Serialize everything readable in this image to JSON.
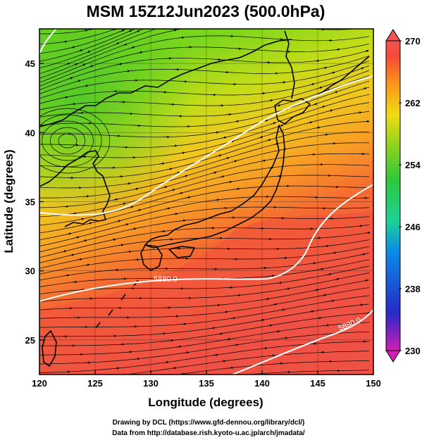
{
  "title": "MSM 15Z12Jun2023 (500.0hPa)",
  "x_axis": {
    "label": "Longitude (degrees)",
    "range": [
      120,
      150
    ],
    "ticks": [
      "120",
      "125",
      "130",
      "135",
      "140",
      "145",
      "150"
    ]
  },
  "y_axis": {
    "label": "Latitude (degrees)",
    "range": [
      22.5,
      47.5
    ],
    "ticks": [
      "25",
      "30",
      "35",
      "40",
      "45"
    ]
  },
  "colorbar": {
    "range": [
      230,
      270
    ],
    "ticks": [
      "270",
      "262",
      "254",
      "246",
      "238",
      "230"
    ],
    "colors": [
      "#d21eb4",
      "#2828c8",
      "#0a8ce6",
      "#1ed296",
      "#2dc83c",
      "#8cd21e",
      "#f0dc14",
      "#fa9619",
      "#f54b37",
      "#ef5550"
    ]
  },
  "contour_labels": [
    "5880.0",
    "5880.0"
  ],
  "credits": {
    "line1": "Drawing by DCL (https://www.gfd-dennou.org/library/dcl/)",
    "line2": "Data from http://database.rish.kyoto-u.ac.jp/arch/jmadata/"
  },
  "colors": {
    "contour": "#ffffff",
    "coast": "#000000"
  }
}
